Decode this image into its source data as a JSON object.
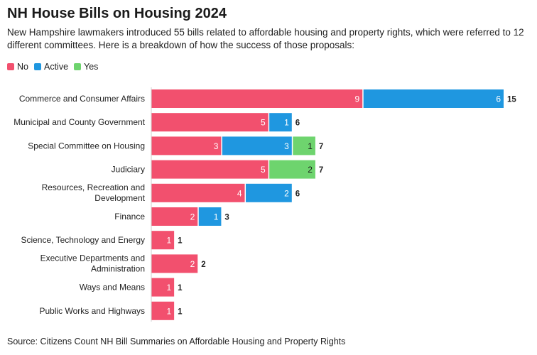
{
  "header": {
    "title": "NH House Bills on Housing 2024",
    "subtitle": "New Hampshire lawmakers introduced 55 bills related to affordable housing and property rights, which were referred to 12 different committees. Here is a breakdown of how the success of those proposals:"
  },
  "legend": [
    {
      "label": "No",
      "color": "#f2506e"
    },
    {
      "label": "Active",
      "color": "#1f97e0"
    },
    {
      "label": "Yes",
      "color": "#6ed46e"
    }
  ],
  "source": "Source: Citizens Count NH Bill Summaries on Affordable Housing and Property Rights",
  "chart_data": {
    "type": "bar",
    "orientation": "horizontal",
    "stacked": true,
    "categories": [
      "Commerce and Consumer Affairs",
      "Municipal and County Government",
      "Special Committee on Housing",
      "Judiciary",
      "Resources, Recreation and Development",
      "Finance",
      "Science, Technology and Energy",
      "Executive Departments and Administration",
      "Ways and Means",
      "Public Works and Highways"
    ],
    "series": [
      {
        "name": "No",
        "color": "#f2506e",
        "values": [
          9,
          5,
          3,
          5,
          4,
          2,
          1,
          2,
          1,
          1
        ]
      },
      {
        "name": "Active",
        "color": "#1f97e0",
        "values": [
          6,
          1,
          3,
          0,
          2,
          1,
          0,
          0,
          0,
          0
        ]
      },
      {
        "name": "Yes",
        "color": "#6ed46e",
        "values": [
          0,
          0,
          1,
          2,
          0,
          0,
          0,
          0,
          0,
          0
        ]
      }
    ],
    "totals": [
      15,
      6,
      7,
      7,
      6,
      3,
      1,
      2,
      1,
      1
    ],
    "xlim": [
      0,
      15
    ],
    "grid": false,
    "legend_position": "top-left"
  }
}
